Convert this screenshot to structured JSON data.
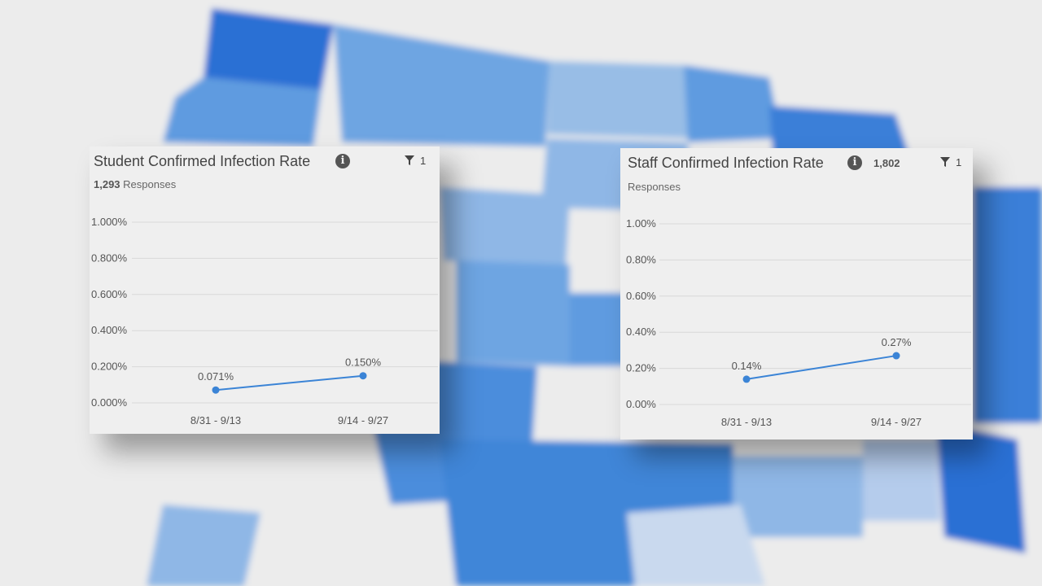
{
  "background": {
    "description_colors": [
      "#2c6fd4",
      "#5f9be0",
      "#8fb7e6",
      "#c9d9ee"
    ]
  },
  "colors": {
    "series": "#3b84d6",
    "grid": "#d8d8d8",
    "text": "#555555"
  },
  "student_card": {
    "title": "Student Confirmed Infection Rate",
    "responses_count": "1,293",
    "responses_label": "Responses",
    "filter_count": "1"
  },
  "staff_card": {
    "title": "Staff Confirmed Infection Rate",
    "responses_count": "1,802",
    "responses_label": "Responses",
    "filter_count": "1"
  },
  "chart_data": [
    {
      "type": "line",
      "title": "Student Confirmed Infection Rate",
      "categories": [
        "8/31 - 9/13",
        "9/14 - 9/27"
      ],
      "series": [
        {
          "values": [
            0.071,
            0.15
          ]
        }
      ],
      "data_labels": [
        "0.071%",
        "0.150%"
      ],
      "yticks": [
        "1.000%",
        "0.800%",
        "0.600%",
        "0.400%",
        "0.200%",
        "0.000%"
      ],
      "ylim": [
        0,
        1.0
      ],
      "grid": true
    },
    {
      "type": "line",
      "title": "Staff Confirmed Infection Rate",
      "categories": [
        "8/31 - 9/13",
        "9/14 - 9/27"
      ],
      "series": [
        {
          "values": [
            0.14,
            0.27
          ]
        }
      ],
      "data_labels": [
        "0.14%",
        "0.27%"
      ],
      "yticks": [
        "1.00%",
        "0.80%",
        "0.60%",
        "0.40%",
        "0.20%",
        "0.00%"
      ],
      "ylim": [
        0,
        1.0
      ],
      "grid": true
    }
  ]
}
